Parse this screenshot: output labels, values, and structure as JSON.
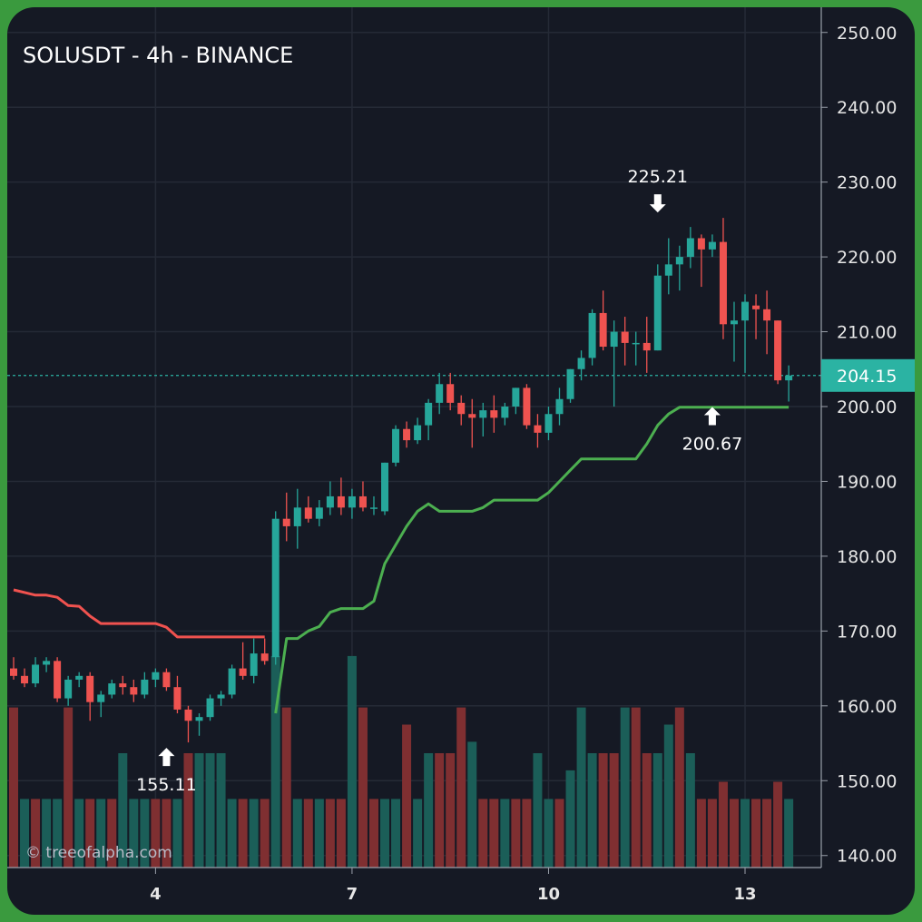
{
  "chart_data": {
    "type": "candlestick",
    "title": "SOLUSDT - 4h - BINANCE",
    "timeframe": "4h",
    "ylim": [
      138,
      253
    ],
    "y_ticks": [
      "140.00",
      "150.00",
      "160.00",
      "170.00",
      "180.00",
      "190.00",
      "200.00",
      "210.00",
      "220.00",
      "230.00",
      "240.00",
      "250.00"
    ],
    "x_ticks": [
      {
        "label": "4",
        "bar": 13
      },
      {
        "label": "7",
        "bar": 31
      },
      {
        "label": "10",
        "bar": 49
      },
      {
        "label": "13",
        "bar": 67
      }
    ],
    "last_price": "204.15",
    "last_price_value": 204.15,
    "grid": true,
    "candles": [
      [
        165.0,
        166.5,
        163.5,
        164.0
      ],
      [
        164.0,
        165.0,
        162.5,
        163.0
      ],
      [
        163.0,
        166.5,
        162.5,
        165.5
      ],
      [
        165.5,
        166.5,
        164.5,
        166.0
      ],
      [
        166.0,
        166.5,
        160.5,
        161.0
      ],
      [
        161.0,
        164.0,
        160.0,
        163.5
      ],
      [
        163.5,
        164.5,
        162.5,
        164.0
      ],
      [
        164.0,
        164.5,
        158.0,
        160.5
      ],
      [
        160.5,
        162.0,
        158.5,
        161.5
      ],
      [
        161.5,
        163.5,
        161.0,
        163.0
      ],
      [
        163.0,
        164.0,
        161.5,
        162.5
      ],
      [
        162.5,
        163.5,
        160.5,
        161.5
      ],
      [
        161.5,
        164.5,
        161.0,
        163.5
      ],
      [
        163.5,
        165.0,
        162.5,
        164.5
      ],
      [
        164.5,
        165.0,
        162.0,
        162.5
      ],
      [
        162.5,
        164.0,
        159.0,
        159.5
      ],
      [
        159.5,
        160.0,
        155.11,
        158.0
      ],
      [
        158.0,
        159.0,
        156.0,
        158.5
      ],
      [
        158.5,
        161.5,
        158.0,
        161.0
      ],
      [
        161.0,
        162.0,
        160.0,
        161.5
      ],
      [
        161.5,
        165.5,
        161.0,
        165.0
      ],
      [
        165.0,
        168.5,
        163.5,
        164.0
      ],
      [
        164.0,
        169.0,
        163.0,
        167.0
      ],
      [
        167.0,
        169.0,
        165.5,
        166.0
      ],
      [
        166.5,
        186.0,
        165.5,
        185.0
      ],
      [
        185.0,
        188.5,
        182.0,
        184.0
      ],
      [
        184.0,
        189.0,
        181.0,
        186.5
      ],
      [
        186.5,
        188.0,
        184.5,
        185.0
      ],
      [
        185.0,
        187.5,
        184.0,
        186.5
      ],
      [
        186.5,
        190.0,
        185.5,
        188.0
      ],
      [
        188.0,
        190.5,
        185.5,
        186.5
      ],
      [
        186.5,
        189.0,
        185.0,
        188.0
      ],
      [
        188.0,
        190.0,
        186.0,
        186.5
      ],
      [
        186.5,
        188.0,
        185.5,
        186.5
      ],
      [
        186.0,
        192.5,
        185.5,
        192.5
      ],
      [
        192.5,
        197.5,
        192.0,
        197.0
      ],
      [
        197.0,
        198.0,
        194.5,
        195.5
      ],
      [
        195.5,
        198.5,
        195.0,
        197.5
      ],
      [
        197.5,
        201.0,
        195.5,
        200.5
      ],
      [
        200.5,
        204.5,
        199.0,
        203.0
      ],
      [
        203.0,
        204.5,
        199.5,
        200.5
      ],
      [
        200.5,
        201.5,
        197.5,
        199.0
      ],
      [
        199.0,
        201.0,
        194.5,
        198.5
      ],
      [
        198.5,
        200.5,
        196.0,
        199.5
      ],
      [
        199.5,
        201.5,
        196.5,
        198.5
      ],
      [
        198.5,
        200.5,
        197.5,
        200.0
      ],
      [
        200.0,
        202.5,
        199.0,
        202.5
      ],
      [
        202.5,
        203.0,
        197.0,
        197.5
      ],
      [
        197.5,
        199.0,
        194.5,
        196.5
      ],
      [
        196.5,
        200.0,
        195.5,
        199.0
      ],
      [
        199.0,
        202.5,
        197.5,
        201.0
      ],
      [
        201.0,
        205.0,
        200.5,
        205.0
      ],
      [
        205.0,
        207.5,
        203.5,
        206.5
      ],
      [
        206.5,
        213.0,
        205.5,
        212.5
      ],
      [
        212.5,
        215.5,
        207.5,
        208.0
      ],
      [
        208.0,
        211.5,
        200.0,
        210.0
      ],
      [
        210.0,
        212.0,
        205.5,
        208.5
      ],
      [
        208.5,
        210.0,
        205.5,
        208.5
      ],
      [
        208.5,
        212.0,
        204.5,
        207.5
      ],
      [
        207.5,
        219.0,
        207.5,
        217.5
      ],
      [
        217.5,
        222.5,
        215.0,
        219.0
      ],
      [
        219.0,
        221.5,
        215.5,
        220.0
      ],
      [
        220.0,
        224.0,
        218.5,
        222.5
      ],
      [
        222.5,
        223.0,
        216.0,
        221.0
      ],
      [
        221.0,
        223.0,
        220.0,
        222.0
      ],
      [
        222.0,
        225.21,
        209.0,
        211.0
      ],
      [
        211.0,
        214.0,
        206.0,
        211.5
      ],
      [
        211.5,
        215.0,
        204.5,
        214.0
      ],
      [
        213.5,
        215.0,
        209.0,
        213.0
      ],
      [
        213.0,
        215.5,
        207.0,
        211.5
      ],
      [
        211.5,
        211.5,
        203.0,
        203.5
      ],
      [
        203.5,
        205.5,
        200.67,
        204.15
      ]
    ],
    "volume_up": [
      false,
      true,
      false,
      true,
      true,
      false,
      true,
      false,
      true,
      false,
      true,
      true,
      true,
      false,
      false,
      true,
      false,
      true,
      true,
      true,
      true,
      false,
      true,
      false,
      true,
      false,
      true,
      false,
      true,
      false,
      false,
      true,
      false,
      false,
      true,
      true,
      false,
      true,
      true,
      false,
      false,
      false,
      true,
      false,
      false,
      true,
      false,
      false,
      true,
      true,
      false,
      true,
      true,
      true,
      false,
      false,
      true,
      false,
      false,
      true,
      true,
      false,
      true,
      false,
      false,
      false,
      false,
      true,
      false,
      false,
      false,
      true
    ],
    "volumes": [
      28,
      12,
      12,
      12,
      12,
      28,
      12,
      12,
      12,
      12,
      20,
      12,
      12,
      12,
      12,
      12,
      20,
      20,
      20,
      20,
      12,
      12,
      12,
      12,
      37,
      28,
      12,
      12,
      12,
      12,
      12,
      37,
      28,
      12,
      12,
      12,
      25,
      12,
      20,
      20,
      20,
      28,
      22,
      12,
      12,
      12,
      12,
      12,
      20,
      12,
      12,
      17,
      28,
      20,
      20,
      20,
      28,
      28,
      20,
      20,
      25,
      28,
      20,
      12,
      12,
      15,
      12,
      12,
      12,
      12,
      15,
      12
    ],
    "volumes_style": "volumes are approximate bar heights (relative units, not exact counts)",
    "resistance_line": [
      [
        0,
        175.5
      ],
      [
        2,
        174.8
      ],
      [
        3,
        174.8
      ],
      [
        4,
        174.5
      ],
      [
        5,
        173.4
      ],
      [
        6,
        173.3
      ],
      [
        7,
        172.0
      ],
      [
        8,
        171.0
      ],
      [
        9,
        171.0
      ],
      [
        10,
        171.0
      ],
      [
        11,
        171.0
      ],
      [
        12,
        171.0
      ],
      [
        13,
        171.0
      ],
      [
        14,
        170.5
      ],
      [
        15,
        169.2
      ],
      [
        16,
        169.2
      ],
      [
        17,
        169.2
      ],
      [
        18,
        169.2
      ],
      [
        19,
        169.2
      ],
      [
        20,
        169.2
      ],
      [
        21,
        169.2
      ],
      [
        22,
        169.2
      ],
      [
        23,
        169.2
      ]
    ],
    "support_line": [
      [
        24,
        159.0
      ],
      [
        25,
        169.0
      ],
      [
        26,
        169.0
      ],
      [
        27,
        170.0
      ],
      [
        28,
        170.6
      ],
      [
        29,
        172.5
      ],
      [
        30,
        173.0
      ],
      [
        31,
        173.0
      ],
      [
        32,
        173.0
      ],
      [
        33,
        174.0
      ],
      [
        34,
        179.0
      ],
      [
        35,
        181.5
      ],
      [
        36,
        184.0
      ],
      [
        37,
        186.0
      ],
      [
        38,
        187.0
      ],
      [
        39,
        186.0
      ],
      [
        40,
        186.0
      ],
      [
        41,
        186.0
      ],
      [
        42,
        186.0
      ],
      [
        43,
        186.5
      ],
      [
        44,
        187.5
      ],
      [
        45,
        187.5
      ],
      [
        46,
        187.5
      ],
      [
        47,
        187.5
      ],
      [
        48,
        187.5
      ],
      [
        49,
        188.5
      ],
      [
        50,
        190.0
      ],
      [
        51,
        191.5
      ],
      [
        52,
        193.0
      ],
      [
        53,
        193.0
      ],
      [
        54,
        193.0
      ],
      [
        55,
        193.0
      ],
      [
        56,
        193.0
      ],
      [
        57,
        193.0
      ],
      [
        58,
        195.0
      ],
      [
        59,
        197.5
      ],
      [
        60,
        199.0
      ],
      [
        61,
        199.9
      ],
      [
        62,
        199.9
      ],
      [
        63,
        199.9
      ],
      [
        64,
        199.9
      ],
      [
        65,
        199.9
      ],
      [
        66,
        199.9
      ],
      [
        67,
        199.9
      ],
      [
        68,
        199.9
      ],
      [
        69,
        199.9
      ],
      [
        70,
        199.9
      ],
      [
        71,
        199.9
      ]
    ],
    "annotations": [
      {
        "text": "225.21",
        "bar": 59,
        "value": 225.21,
        "position": "above"
      },
      {
        "text": "155.11",
        "bar": 14,
        "value": 155.11,
        "position": "below"
      },
      {
        "text": "200.67",
        "bar": 64,
        "value": 200.67,
        "position": "below"
      }
    ],
    "colors": {
      "up": "#26a69a",
      "down": "#ef5350",
      "up_volume": "#1b5e58",
      "down_volume": "#7f2f31",
      "support": "#4caf50",
      "resistance": "#f0524f",
      "grid": "#252a36",
      "axis_line": "#9aa0aa",
      "last_price_line": "#2bb3a3"
    }
  },
  "watermark": "© treeofalpha.com"
}
